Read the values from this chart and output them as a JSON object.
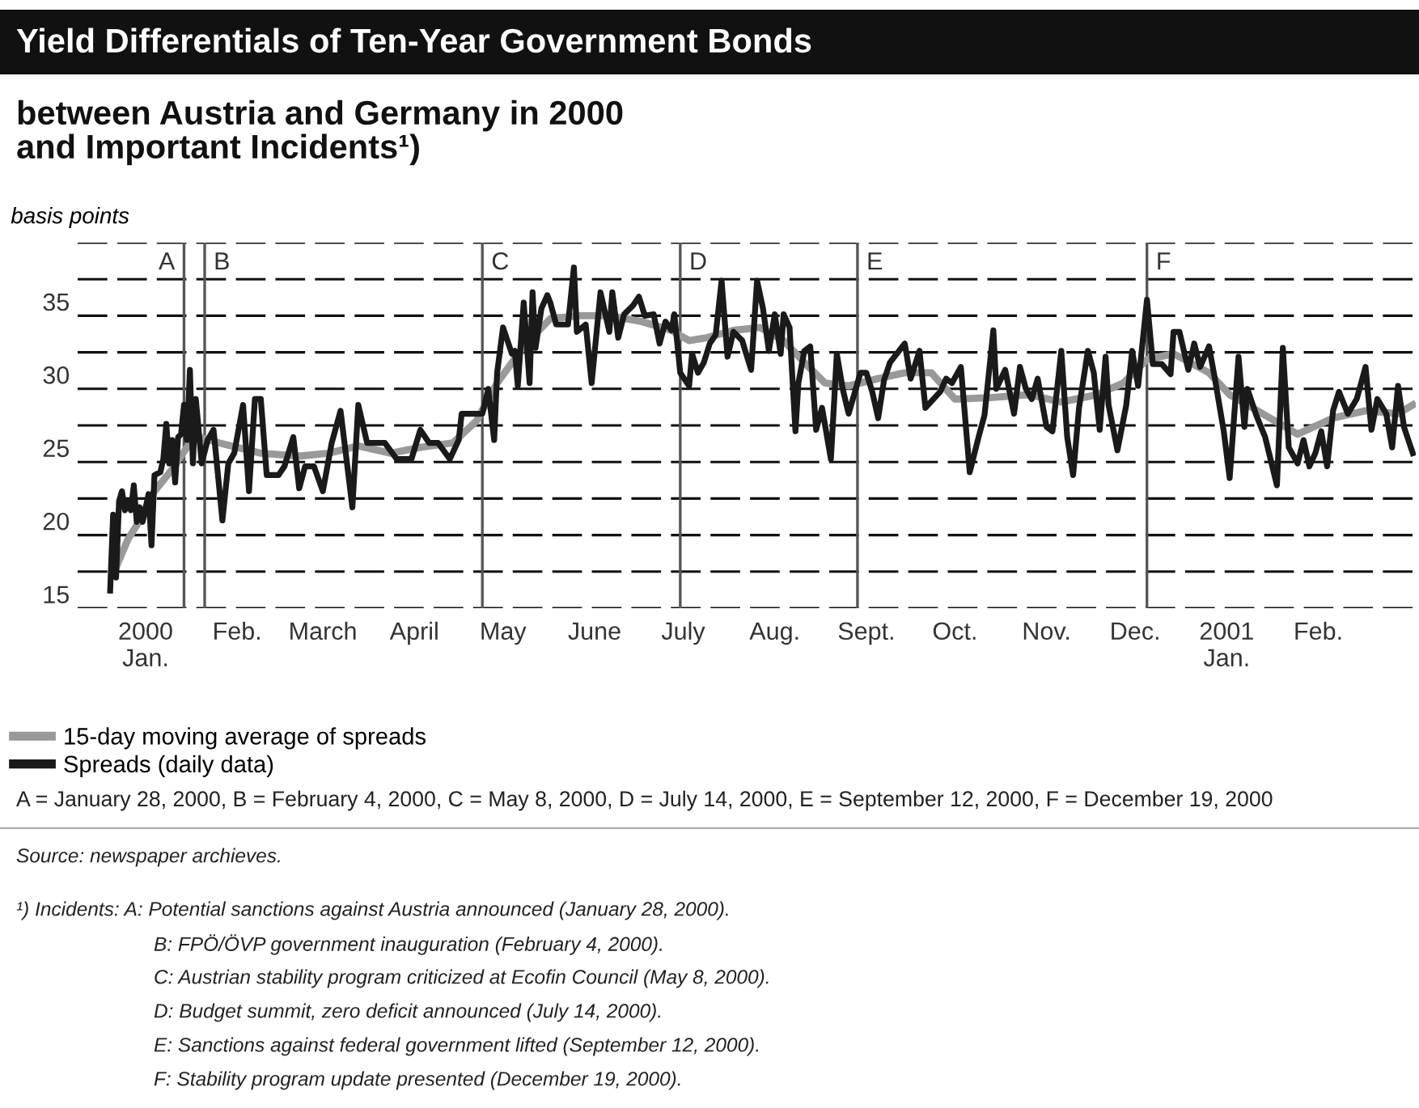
{
  "chart_data": {
    "type": "line",
    "title": "Yield Differentials of Ten-Year Government Bonds",
    "subtitle": "between Austria and Germany in 2000\nand Important Incidents¹)",
    "ylabel": "basis points",
    "series": [
      {
        "name": "15-day moving average of spreads",
        "color": "#999999",
        "x": [
          "2000-01-05",
          "2000-01-09",
          "2000-01-13",
          "2000-01-18",
          "2000-01-24",
          "2000-01-29",
          "2000-02-02",
          "2000-02-09",
          "2000-02-23",
          "2000-03-07",
          "2000-03-17",
          "2000-03-27",
          "2000-04-07",
          "2000-04-17",
          "2000-04-28",
          "2000-05-06",
          "2000-05-13",
          "2000-05-22",
          "2000-05-31",
          "2000-06-10",
          "2000-06-20",
          "2000-07-01",
          "2000-07-11",
          "2000-07-17",
          "2000-07-23",
          "2000-08-01",
          "2000-08-10",
          "2000-08-18",
          "2000-08-25",
          "2000-09-01",
          "2000-09-09",
          "2000-09-19",
          "2000-09-28",
          "2000-10-07",
          "2000-10-15",
          "2000-10-27",
          "2000-11-09",
          "2000-11-20",
          "2000-12-02",
          "2000-12-11",
          "2000-12-19",
          "2000-12-28",
          "2001-01-09",
          "2001-01-16",
          "2001-01-28",
          "2001-02-08",
          "2001-02-20",
          "2001-03-03",
          "2001-03-14",
          "2001-03-19"
        ],
        "values": [
          17.8,
          19.7,
          21.0,
          23.0,
          24.5,
          26.0,
          26.7,
          26.3,
          25.6,
          25.4,
          25.6,
          26.1,
          25.6,
          26.0,
          26.3,
          27.8,
          30.4,
          32.9,
          34.8,
          35.0,
          35.0,
          34.6,
          34.0,
          33.3,
          33.5,
          34.0,
          34.2,
          33.3,
          31.8,
          30.4,
          30.2,
          30.7,
          31.1,
          31.1,
          29.3,
          29.4,
          29.6,
          29.1,
          29.6,
          30.4,
          32.0,
          32.4,
          31.1,
          29.6,
          28.2,
          26.9,
          28.0,
          28.5,
          28.3,
          28.9
        ]
      },
      {
        "name": "Spreads (daily data)",
        "color": "#1a1a1a",
        "x": [
          "2000-01-03",
          "2000-01-04",
          "2000-01-05",
          "2000-01-06",
          "2000-01-07",
          "2000-01-08",
          "2000-01-09",
          "2000-01-10",
          "2000-01-11",
          "2000-01-12",
          "2000-01-13",
          "2000-01-14",
          "2000-01-16",
          "2000-01-17",
          "2000-01-18",
          "2000-01-20",
          "2000-01-21",
          "2000-01-22",
          "2000-01-23",
          "2000-01-24",
          "2000-01-25",
          "2000-01-26",
          "2000-01-27",
          "2000-01-28",
          "2000-01-29",
          "2000-01-30",
          "2000-01-31",
          "2000-02-01",
          "2000-02-02",
          "2000-02-03",
          "2000-02-05",
          "2000-02-07",
          "2000-02-10",
          "2000-02-12",
          "2000-02-14",
          "2000-02-17",
          "2000-02-19",
          "2000-02-21",
          "2000-02-23",
          "2000-02-25",
          "2000-02-29",
          "2000-03-02",
          "2000-03-05",
          "2000-03-07",
          "2000-03-09",
          "2000-03-12",
          "2000-03-15",
          "2000-03-18",
          "2000-03-21",
          "2000-03-23",
          "2000-03-25",
          "2000-03-27",
          "2000-03-30",
          "2000-04-05",
          "2000-04-09",
          "2000-04-14",
          "2000-04-17",
          "2000-04-20",
          "2000-04-23",
          "2000-04-27",
          "2000-04-30",
          "2000-05-01",
          "2000-05-04",
          "2000-05-08",
          "2000-05-10",
          "2000-05-12",
          "2000-05-13",
          "2000-05-15",
          "2000-05-18",
          "2000-05-19",
          "2000-05-20",
          "2000-05-22",
          "2000-05-24",
          "2000-05-25",
          "2000-05-26",
          "2000-05-28",
          "2000-05-30",
          "2000-05-31",
          "2000-06-02",
          "2000-06-04",
          "2000-06-06",
          "2000-06-08",
          "2000-06-09",
          "2000-06-12",
          "2000-06-14",
          "2000-06-17",
          "2000-06-20",
          "2000-06-21",
          "2000-06-23",
          "2000-06-25",
          "2000-06-28",
          "2000-06-30",
          "2000-07-02",
          "2000-07-05",
          "2000-07-07",
          "2000-07-09",
          "2000-07-11",
          "2000-07-12",
          "2000-07-14",
          "2000-07-17",
          "2000-07-18",
          "2000-07-20",
          "2000-07-22",
          "2000-07-24",
          "2000-07-26",
          "2000-07-28",
          "2000-07-30",
          "2000-08-01",
          "2000-08-04",
          "2000-08-05",
          "2000-08-07",
          "2000-08-09",
          "2000-08-11",
          "2000-08-13",
          "2000-08-15",
          "2000-08-17",
          "2000-08-18",
          "2000-08-20",
          "2000-08-22",
          "2000-08-23",
          "2000-08-25",
          "2000-08-27",
          "2000-08-29",
          "2000-08-31",
          "2000-09-03",
          "2000-09-05",
          "2000-09-07",
          "2000-09-09",
          "2000-09-13",
          "2000-09-15",
          "2000-09-17",
          "2000-09-19",
          "2000-09-21",
          "2000-09-23",
          "2000-09-28",
          "2000-09-30",
          "2000-10-03",
          "2000-10-05",
          "2000-10-10",
          "2000-10-12",
          "2000-10-14",
          "2000-10-17",
          "2000-10-20",
          "2000-10-23",
          "2000-10-25",
          "2000-10-28",
          "2000-10-29",
          "2000-11-01",
          "2000-11-04",
          "2000-11-06",
          "2000-11-08",
          "2000-11-10",
          "2000-11-12",
          "2000-11-15",
          "2000-11-17",
          "2000-11-20",
          "2000-11-22",
          "2000-11-24",
          "2000-11-26",
          "2000-11-29",
          "2000-12-01",
          "2000-12-03",
          "2000-12-05",
          "2000-12-06",
          "2000-12-09",
          "2000-12-12",
          "2000-12-14",
          "2000-12-16",
          "2000-12-19",
          "2000-12-21",
          "2000-12-24",
          "2000-12-27",
          "2000-12-28",
          "2000-12-30",
          "2001-01-02",
          "2001-01-04",
          "2001-01-06",
          "2001-01-09",
          "2001-01-11",
          "2001-01-14",
          "2001-01-16",
          "2001-01-19",
          "2001-01-21",
          "2001-01-22",
          "2001-01-25",
          "2001-01-28",
          "2001-02-01",
          "2001-02-03",
          "2001-02-05",
          "2001-02-08",
          "2001-02-10",
          "2001-02-12",
          "2001-02-14",
          "2001-02-16",
          "2001-02-18",
          "2001-02-20",
          "2001-02-22",
          "2001-02-25",
          "2001-02-28",
          "2001-03-03",
          "2001-03-05",
          "2001-03-07",
          "2001-03-10",
          "2001-03-12",
          "2001-03-14",
          "2001-03-16",
          "2001-03-19"
        ],
        "values": [
          16.2,
          21.4,
          17.1,
          22.3,
          23.0,
          21.7,
          22.3,
          21.7,
          23.4,
          20.9,
          21.9,
          20.9,
          22.8,
          19.3,
          24.1,
          24.3,
          25.2,
          27.6,
          24.9,
          26.5,
          23.6,
          26.7,
          26.9,
          28.9,
          26.5,
          31.3,
          24.9,
          29.3,
          27.1,
          24.9,
          26.5,
          27.2,
          21.0,
          24.9,
          25.6,
          28.9,
          23.0,
          29.3,
          29.3,
          24.1,
          24.1,
          24.7,
          26.7,
          23.2,
          24.7,
          24.7,
          23.0,
          26.3,
          28.5,
          25.2,
          21.9,
          28.9,
          26.3,
          26.3,
          25.2,
          25.2,
          27.2,
          26.3,
          26.3,
          25.2,
          26.5,
          28.3,
          28.3,
          28.3,
          30.0,
          26.5,
          31.1,
          34.2,
          32.4,
          32.6,
          30.2,
          35.9,
          30.4,
          36.6,
          32.8,
          35.5,
          36.4,
          35.9,
          34.4,
          34.4,
          34.4,
          38.3,
          33.9,
          34.4,
          30.4,
          36.6,
          33.9,
          36.6,
          33.5,
          35.1,
          35.7,
          36.3,
          35.0,
          35.1,
          33.1,
          34.6,
          34.0,
          35.1,
          31.1,
          30.2,
          32.4,
          31.1,
          31.8,
          33.1,
          33.7,
          37.4,
          32.2,
          33.9,
          33.3,
          32.6,
          31.3,
          37.4,
          35.5,
          32.6,
          35.1,
          32.4,
          35.1,
          34.2,
          27.1,
          30.4,
          32.6,
          32.9,
          27.2,
          28.7,
          25.2,
          32.4,
          30.0,
          28.3,
          31.1,
          31.1,
          29.8,
          28.0,
          30.6,
          31.8,
          33.1,
          30.7,
          32.6,
          28.7,
          29.8,
          30.7,
          30.4,
          31.5,
          24.3,
          26.7,
          28.2,
          34.0,
          30.0,
          31.3,
          28.3,
          31.5,
          30.0,
          29.3,
          30.7,
          27.4,
          27.1,
          32.6,
          26.7,
          24.1,
          28.7,
          32.6,
          31.1,
          27.2,
          32.2,
          28.9,
          25.8,
          28.9,
          32.6,
          30.2,
          36.1,
          31.7,
          31.7,
          31.0,
          33.9,
          33.9,
          31.3,
          33.1,
          31.5,
          32.9,
          30.7,
          27.1,
          23.9,
          32.2,
          27.4,
          30.0,
          28.2,
          26.7,
          23.4,
          32.8,
          26.0,
          24.9,
          26.5,
          24.7,
          25.6,
          27.1,
          24.7,
          28.5,
          29.8,
          28.3,
          29.3,
          31.5,
          27.2,
          29.3,
          28.3,
          26.0,
          30.2,
          27.4,
          25.6
        ]
      }
    ],
    "xlim": [
      "1999-12-23",
      "2001-03-20"
    ],
    "xticks": [
      {
        "value": "2000-01-15",
        "label": "2000\nJan."
      },
      {
        "value": "2000-02-15",
        "label": "Feb."
      },
      {
        "value": "2000-03-15",
        "label": "March"
      },
      {
        "value": "2000-04-15",
        "label": "April"
      },
      {
        "value": "2000-05-15",
        "label": "May"
      },
      {
        "value": "2000-06-15",
        "label": "June"
      },
      {
        "value": "2000-07-15",
        "label": "July"
      },
      {
        "value": "2000-08-15",
        "label": "Aug."
      },
      {
        "value": "2000-09-15",
        "label": "Sept."
      },
      {
        "value": "2000-10-15",
        "label": "Oct."
      },
      {
        "value": "2000-11-15",
        "label": "Nov."
      },
      {
        "value": "2000-12-15",
        "label": "Dec."
      },
      {
        "value": "2001-01-15",
        "label": "2001\nJan."
      },
      {
        "value": "2001-02-15",
        "label": "Feb."
      }
    ],
    "ylim": [
      15,
      40
    ],
    "yticks": [
      15,
      {
        "value": 17.5,
        "label": null
      },
      20,
      {
        "value": 22.5,
        "label": null
      },
      25,
      {
        "value": 27.5,
        "label": null
      },
      30,
      {
        "value": 32.5,
        "label": null
      },
      35,
      {
        "value": 37.5,
        "label": null
      },
      {
        "value": 40,
        "label": null
      }
    ],
    "grid": "y",
    "line_style": "solid",
    "marker": "none",
    "legend": "bottom",
    "ref_lines": [
      {
        "axis": "x",
        "value": "2000-01-28",
        "label": "A",
        "color": "#555555"
      },
      {
        "axis": "x",
        "value": "2000-02-04",
        "label": "B",
        "color": "#555555"
      },
      {
        "axis": "x",
        "value": "2000-05-08",
        "label": "C",
        "color": "#555555"
      },
      {
        "axis": "x",
        "value": "2000-07-14",
        "label": "D",
        "color": "#555555"
      },
      {
        "axis": "x",
        "value": "2000-09-12",
        "label": "E",
        "color": "#555555"
      },
      {
        "axis": "x",
        "value": "2000-12-19",
        "label": "F",
        "color": "#555555"
      }
    ],
    "annotations": [
      "A = January 28, 2000, B = February 4, 2000, C = May 8, 2000, D = July 14, 2000, E = September 12, 2000, F = December 19, 2000",
      "Source: newspaper archieves.",
      "¹) Incidents: A: Potential sanctions against Austria announced (January 28, 2000).",
      "B: FPÖ/ÖVP government inauguration (February 4, 2000).",
      "C: Austrian stability program criticized at Ecofin Council (May 8, 2000).",
      "D: Budget summit, zero deficit announced (July 14, 2000).",
      "E: Sanctions against federal government lifted (September 12, 2000).",
      "F: Stability program update presented (December 19, 2000)."
    ]
  }
}
